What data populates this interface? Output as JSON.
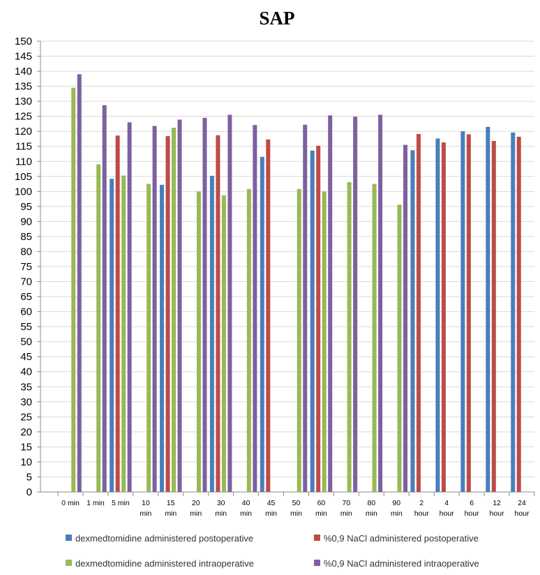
{
  "chart_data": {
    "type": "bar",
    "title": "SAP",
    "xlabel": "",
    "ylabel": "",
    "ylim": [
      0,
      150
    ],
    "ytick_step": 5,
    "grid": "horizontal",
    "legend_position": "bottom",
    "categories": [
      [
        "0 min"
      ],
      [
        "1 min"
      ],
      [
        "5 min"
      ],
      [
        "10",
        "min"
      ],
      [
        "15",
        "min"
      ],
      [
        "20",
        "min"
      ],
      [
        "30",
        "min"
      ],
      [
        "40",
        "min"
      ],
      [
        "45",
        "min"
      ],
      [
        "50",
        "min"
      ],
      [
        "60",
        "min"
      ],
      [
        "70",
        "min"
      ],
      [
        "80",
        "min"
      ],
      [
        "90",
        "min"
      ],
      [
        "2",
        "hour"
      ],
      [
        "4",
        "hour"
      ],
      [
        "6",
        "hour"
      ],
      [
        "12",
        "hour"
      ],
      [
        "24",
        "hour"
      ]
    ],
    "series": [
      {
        "name": "dexmedtomidine administered postoperative",
        "color": "#4a7ebb",
        "values": [
          null,
          null,
          104.2,
          null,
          102.2,
          null,
          105.2,
          null,
          111.5,
          null,
          113.6,
          null,
          null,
          null,
          113.7,
          117.6,
          120.0,
          121.5,
          119.6
        ]
      },
      {
        "name": "%0,9 NaCl administered postoperative",
        "color": "#be4b48",
        "values": [
          null,
          null,
          118.6,
          null,
          118.4,
          null,
          118.7,
          null,
          117.3,
          null,
          115.2,
          null,
          null,
          null,
          119.1,
          116.3,
          119.0,
          116.8,
          118.2
        ]
      },
      {
        "name": "dexmedtomidine administered intraoperative",
        "color": "#98b954",
        "values": [
          134.5,
          109.0,
          105.3,
          102.5,
          121.2,
          100.0,
          98.7,
          100.8,
          null,
          100.8,
          100.0,
          103.1,
          102.5,
          95.6,
          null,
          null,
          null,
          null,
          null
        ]
      },
      {
        "name": "%0,9 NaCl administered intraoperative",
        "color": "#7d60a0",
        "values": [
          139.0,
          128.7,
          123.0,
          121.8,
          123.9,
          124.5,
          125.5,
          122.1,
          null,
          122.2,
          125.3,
          124.9,
          125.5,
          115.5,
          null,
          null,
          null,
          null,
          null
        ]
      }
    ]
  }
}
